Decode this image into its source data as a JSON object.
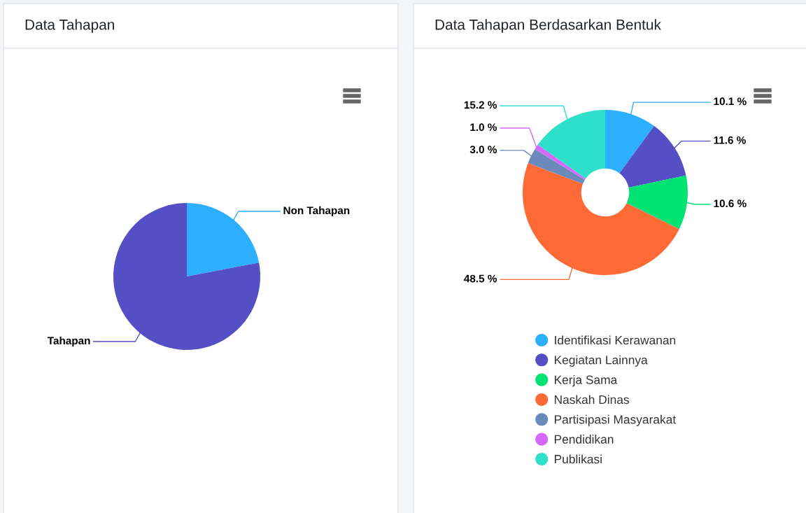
{
  "chart_data": [
    {
      "type": "pie",
      "title": "Data Tahapan",
      "categories": [
        "Non Tahapan",
        "Tahapan"
      ],
      "values": [
        22,
        78
      ],
      "colors": [
        "#2caffe",
        "#544fc5"
      ]
    },
    {
      "type": "donut",
      "title": "Data Tahapan Berdasarkan Bentuk",
      "categories": [
        "Identifikasi Kerawanan",
        "Kegiatan Lainnya",
        "Kerja Sama",
        "Naskah Dinas",
        "Partisipasi Masyarakat",
        "Pendidikan",
        "Publikasi"
      ],
      "values": [
        10.1,
        11.6,
        10.6,
        48.5,
        3.0,
        1.0,
        15.2
      ],
      "colors": [
        "#2caffe",
        "#544fc5",
        "#00e272",
        "#fe6a35",
        "#6b8abc",
        "#d568fb",
        "#2ee0ca"
      ],
      "value_labels": [
        "10.1 %",
        "11.6 %",
        "10.6 %",
        "48.5 %",
        "3.0 %",
        "1.0 %",
        "15.2 %"
      ],
      "legend": "bottom"
    }
  ]
}
